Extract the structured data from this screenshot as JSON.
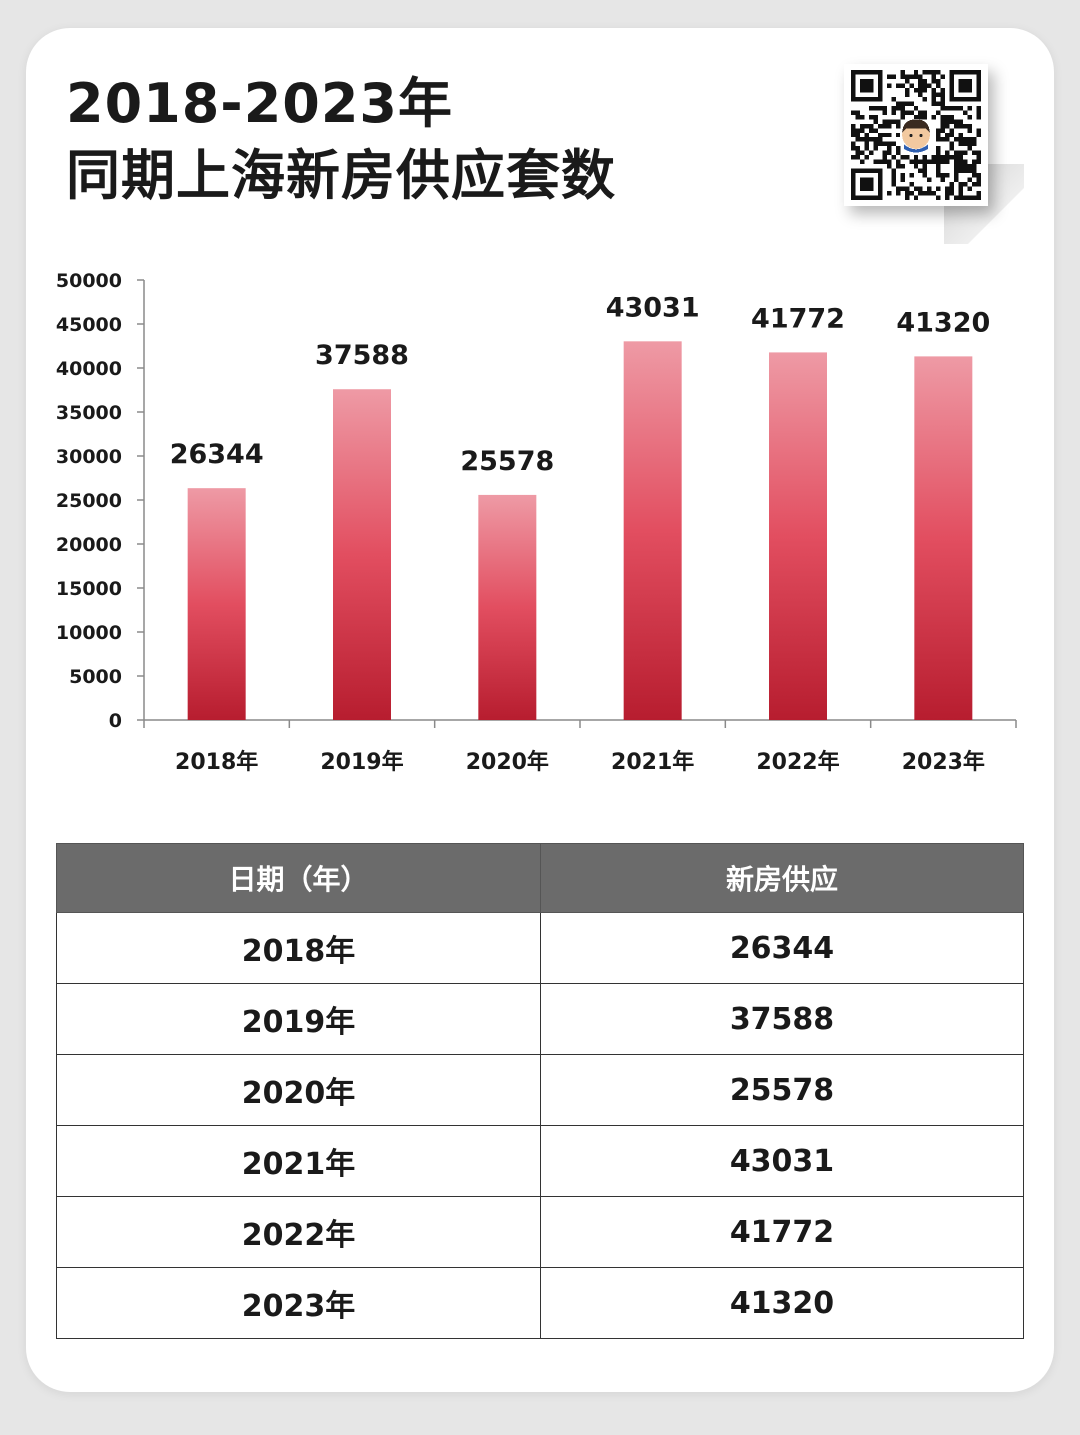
{
  "title": {
    "line1": "2018-2023年",
    "line2": "同期上海新房供应套数"
  },
  "chart_data": {
    "type": "bar",
    "categories": [
      "2018年",
      "2019年",
      "2020年",
      "2021年",
      "2022年",
      "2023年"
    ],
    "values": [
      26344,
      37588,
      25578,
      43031,
      41772,
      41320
    ],
    "yticks": [
      0,
      5000,
      10000,
      15000,
      20000,
      25000,
      30000,
      35000,
      40000,
      45000,
      50000
    ],
    "ylim": [
      0,
      50000
    ],
    "grid": false,
    "bar_colors": {
      "top": "#ee9aa5",
      "middle": "#e24e60",
      "bottom": "#b71d2f"
    }
  },
  "table": {
    "headers": [
      "日期（年）",
      "新房供应"
    ],
    "rows": [
      [
        "2018年",
        "26344"
      ],
      [
        "2019年",
        "37588"
      ],
      [
        "2020年",
        "25578"
      ],
      [
        "2021年",
        "43031"
      ],
      [
        "2022年",
        "41772"
      ],
      [
        "2023年",
        "41320"
      ]
    ]
  },
  "colors": {
    "header_bg": "#6b6b6b",
    "text": "#1a1a1a"
  },
  "icons": {
    "qr": "qr-code-icon"
  }
}
